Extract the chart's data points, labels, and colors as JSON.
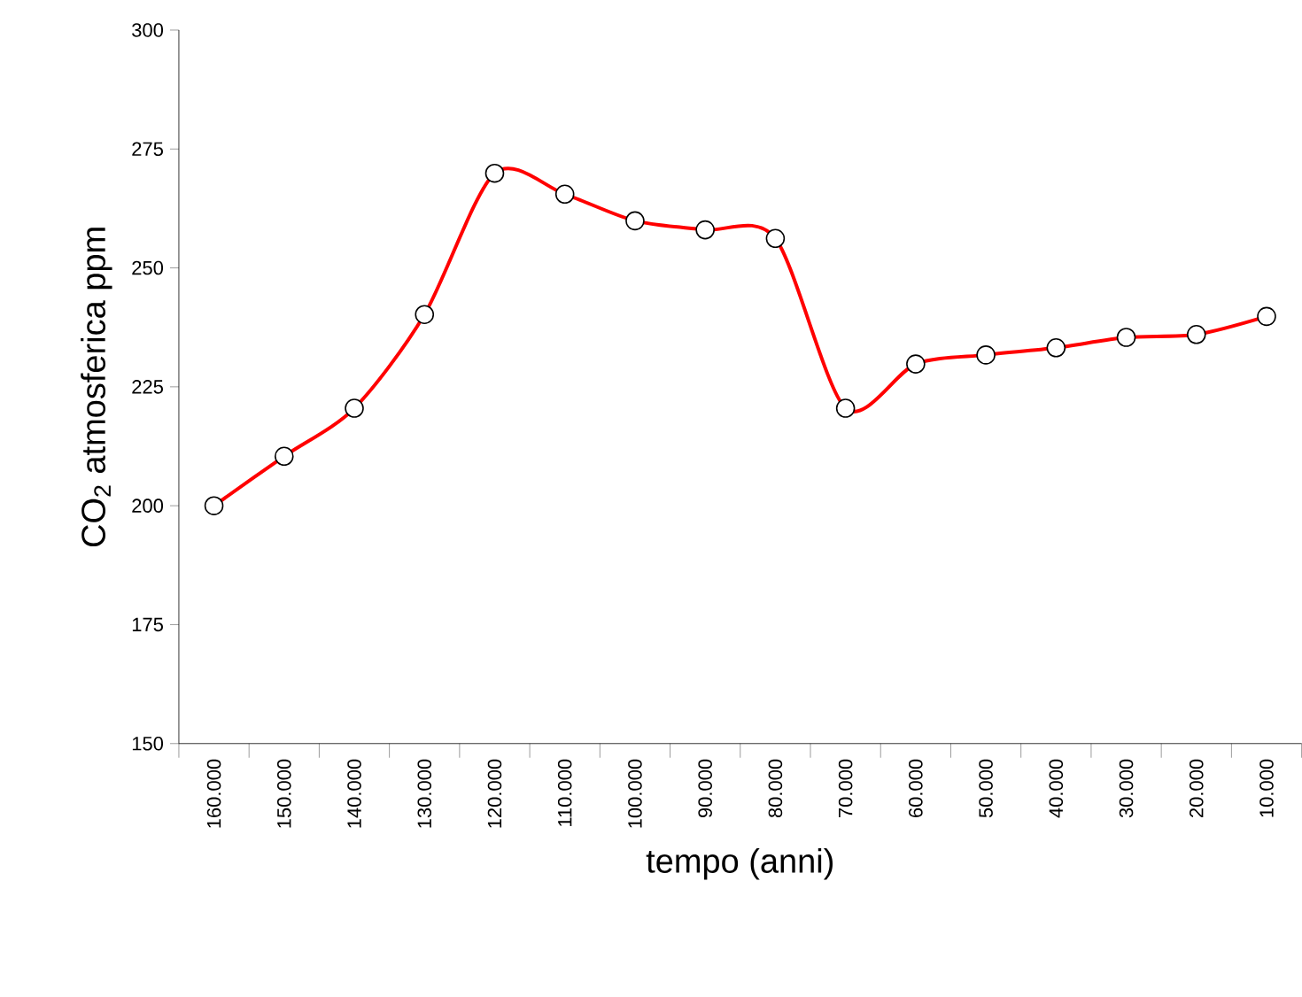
{
  "chart_data": {
    "type": "line",
    "xlabel": "tempo (anni)",
    "ylabel": "CO$_{2}$ atmosferica  ppm",
    "categories": [
      "160.000",
      "150.000",
      "140.000",
      "130.000",
      "120.000",
      "110.000",
      "100.000",
      "90.000",
      "80.000",
      "70.000",
      "60.000",
      "50.000",
      "40.000",
      "30.000",
      "20.000",
      "10.000"
    ],
    "series": [
      {
        "color": "#ff0000",
        "values": [
          200,
          210.4,
          220.5,
          240.2,
          269.9,
          265.5,
          259.9,
          258,
          256.2,
          220.5,
          229.8,
          231.7,
          233.2,
          235.4,
          236,
          239.8
        ]
      }
    ],
    "ylim": [
      150,
      300
    ],
    "yticks": [
      150,
      175,
      200,
      225,
      250,
      275,
      300
    ],
    "marker": "circle",
    "line_style": "solid"
  }
}
